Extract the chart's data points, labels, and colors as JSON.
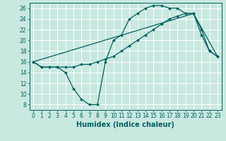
{
  "xlabel": "Humidex (Indice chaleur)",
  "xlim": [
    -0.5,
    23.5
  ],
  "ylim": [
    7,
    27
  ],
  "yticks": [
    8,
    10,
    12,
    14,
    16,
    18,
    20,
    22,
    24,
    26
  ],
  "xticks": [
    0,
    1,
    2,
    3,
    4,
    5,
    6,
    7,
    8,
    9,
    10,
    11,
    12,
    13,
    14,
    15,
    16,
    17,
    18,
    19,
    20,
    21,
    22,
    23
  ],
  "bg_color": "#c8e8e0",
  "line_color": "#006060",
  "grid_color": "#ffffff",
  "line1_x": [
    0,
    1,
    2,
    3,
    4,
    5,
    6,
    7,
    8,
    9,
    10,
    11,
    12,
    13,
    14,
    15,
    16,
    17,
    18,
    19,
    20,
    21,
    22,
    23
  ],
  "line1_y": [
    16,
    15,
    15,
    15,
    14,
    11,
    9,
    8,
    8,
    16,
    20,
    21,
    24,
    25,
    26,
    26.5,
    26.5,
    26,
    26,
    25,
    25,
    21,
    18,
    17
  ],
  "line2_x": [
    0,
    1,
    2,
    3,
    4,
    5,
    6,
    7,
    8,
    9,
    10,
    11,
    12,
    13,
    14,
    15,
    16,
    17,
    18,
    19,
    20,
    21,
    22,
    23
  ],
  "line2_y": [
    16,
    15,
    15,
    15,
    15,
    15,
    15.5,
    15.5,
    16,
    16.5,
    17,
    18,
    19,
    20,
    21,
    22,
    23,
    24,
    24.5,
    25,
    25,
    22,
    18,
    17
  ],
  "line3_x": [
    0,
    20,
    23
  ],
  "line3_y": [
    16,
    25,
    17
  ],
  "marker_size": 2.0,
  "line_width": 0.9,
  "tick_fontsize": 5.5,
  "xlabel_fontsize": 7
}
